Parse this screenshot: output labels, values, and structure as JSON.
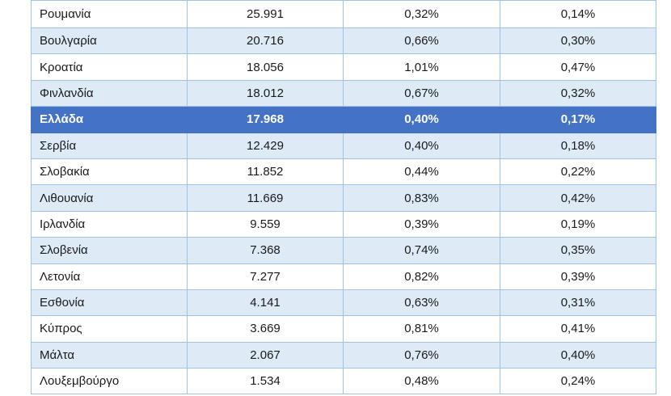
{
  "table": {
    "rows": [
      {
        "country": "Ρουμανία",
        "value": "25.991",
        "pct1": "0,32%",
        "pct2": "0,14%",
        "highlight": false
      },
      {
        "country": "Βουλγαρία",
        "value": "20.716",
        "pct1": "0,66%",
        "pct2": "0,30%",
        "highlight": false
      },
      {
        "country": "Κροατία",
        "value": "18.056",
        "pct1": "1,01%",
        "pct2": "0,47%",
        "highlight": false
      },
      {
        "country": "Φινλανδία",
        "value": "18.012",
        "pct1": "0,67%",
        "pct2": "0,32%",
        "highlight": false
      },
      {
        "country": "Ελλάδα",
        "value": "17.968",
        "pct1": "0,40%",
        "pct2": "0,17%",
        "highlight": true
      },
      {
        "country": "Σερβία",
        "value": "12.429",
        "pct1": "0,40%",
        "pct2": "0,18%",
        "highlight": false
      },
      {
        "country": "Σλοβακία",
        "value": "11.852",
        "pct1": "0,44%",
        "pct2": "0,22%",
        "highlight": false
      },
      {
        "country": "Λιθουανία",
        "value": "11.669",
        "pct1": "0,83%",
        "pct2": "0,42%",
        "highlight": false
      },
      {
        "country": "Ιρλανδία",
        "value": "9.559",
        "pct1": "0,39%",
        "pct2": "0,19%",
        "highlight": false
      },
      {
        "country": "Σλοβενία",
        "value": "7.368",
        "pct1": "0,74%",
        "pct2": "0,35%",
        "highlight": false
      },
      {
        "country": "Λετονία",
        "value": "7.277",
        "pct1": "0,82%",
        "pct2": "0,39%",
        "highlight": false
      },
      {
        "country": "Εσθονία",
        "value": "4.141",
        "pct1": "0,63%",
        "pct2": "0,31%",
        "highlight": false
      },
      {
        "country": "Κύπρος",
        "value": "3.669",
        "pct1": "0,81%",
        "pct2": "0,41%",
        "highlight": false
      },
      {
        "country": "Μάλτα",
        "value": "2.067",
        "pct1": "0,76%",
        "pct2": "0,40%",
        "highlight": false
      },
      {
        "country": "Λουξεμβούργο",
        "value": "1.534",
        "pct1": "0,48%",
        "pct2": "0,24%",
        "highlight": false
      }
    ]
  },
  "colors": {
    "row_odd": "#ffffff",
    "row_even": "#deeaf6",
    "highlight": "#4472c4",
    "border": "#9dc3e6"
  }
}
